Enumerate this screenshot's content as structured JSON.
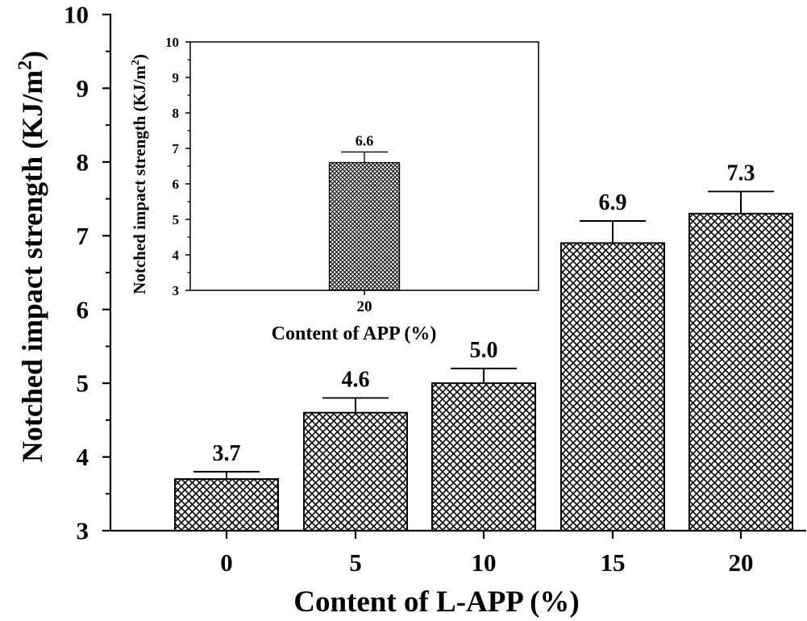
{
  "chart_data": [
    {
      "id": "main",
      "type": "bar",
      "categories": [
        "0",
        "5",
        "10",
        "15",
        "20"
      ],
      "values": [
        3.7,
        4.6,
        5.0,
        6.9,
        7.3
      ],
      "errors": [
        0.1,
        0.2,
        0.2,
        0.3,
        0.3
      ],
      "data_labels": [
        "3.7",
        "4.6",
        "5.0",
        "6.9",
        "7.3"
      ],
      "xlabel": "Content of L-APP (%)",
      "ylabel": "Notched impact strength (KJ/m2)",
      "ylabel_main": "Notched impact strength (KJ/m",
      "ylabel_sup": "2",
      "ylabel_tail": ")",
      "ylim": [
        3,
        10
      ],
      "yticks": [
        "3",
        "4",
        "5",
        "6",
        "7",
        "8",
        "9",
        "10"
      ],
      "bar_pattern": "crosshatch",
      "grid": false
    },
    {
      "id": "inset",
      "type": "bar",
      "categories": [
        "20"
      ],
      "values": [
        6.6
      ],
      "errors": [
        0.3
      ],
      "data_labels": [
        "6.6"
      ],
      "xlabel": "Content of APP (%)",
      "ylabel": "Notched impact strength (KJ/m2)",
      "ylabel_main": "Notched impact strength (KJ/m",
      "ylabel_sup": "2",
      "ylabel_tail": ")",
      "ylim": [
        3,
        10
      ],
      "yticks": [
        "3",
        "4",
        "5",
        "6",
        "7",
        "8",
        "9",
        "10"
      ],
      "bar_pattern": "fine-crosshatch",
      "grid": false,
      "position": "top-left inset"
    }
  ],
  "colors": {
    "axis": "#000000",
    "bar_fill_bg": "#ffffff",
    "hatch": "#000000"
  }
}
